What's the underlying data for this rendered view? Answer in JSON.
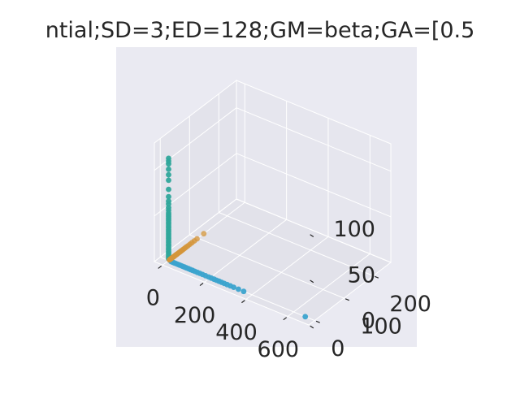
{
  "chart_data": {
    "type": "scatter",
    "projection": "3d",
    "title": "ntial;SD=3;ED=128;GM=beta;GA=[0.5",
    "grid": true,
    "axes": {
      "x": {
        "range": [
          -40,
          700
        ],
        "ticks": [
          "0",
          "200",
          "400",
          "600"
        ],
        "label": ""
      },
      "y": {
        "range": [
          -20,
          260
        ],
        "ticks": [
          "0",
          "100",
          "200"
        ],
        "label": ""
      },
      "z": {
        "range": [
          0,
          130
        ],
        "ticks": [
          "0",
          "50",
          "100"
        ],
        "label": ""
      }
    },
    "colors": {
      "x_arm": "#3ba3cd",
      "y_arm": "#d4953a",
      "z_arm": "#2fa79b",
      "pane": "#eaeaf2",
      "grid": "#ffffff"
    },
    "series": [
      {
        "color_key": "x_arm",
        "points": [
          [
            12,
            0,
            0
          ],
          [
            20,
            0,
            0
          ],
          [
            28,
            0,
            0
          ],
          [
            36,
            0,
            0
          ],
          [
            44,
            0,
            0
          ],
          [
            52,
            0,
            0
          ],
          [
            60,
            0,
            0
          ],
          [
            68,
            0,
            0
          ],
          [
            76,
            0,
            0
          ],
          [
            85,
            0,
            0
          ],
          [
            95,
            0,
            0
          ],
          [
            105,
            0,
            0
          ],
          [
            115,
            0,
            0
          ],
          [
            126,
            0,
            0
          ],
          [
            138,
            0,
            0
          ],
          [
            150,
            0,
            0
          ],
          [
            163,
            0,
            0
          ],
          [
            177,
            0,
            0
          ],
          [
            192,
            0,
            0
          ],
          [
            205,
            0,
            0
          ],
          [
            218,
            0,
            0
          ],
          [
            230,
            0,
            0
          ],
          [
            242,
            0,
            0
          ],
          [
            254,
            0,
            0
          ],
          [
            267,
            0,
            0
          ],
          [
            281,
            0,
            0
          ],
          [
            296,
            0,
            0
          ],
          [
            312,
            0,
            0
          ],
          [
            335,
            0,
            0
          ],
          [
            360,
            0,
            0
          ],
          [
            655,
            0,
            0
          ]
        ]
      },
      {
        "color_key": "y_arm",
        "points": [
          [
            0,
            3,
            0
          ],
          [
            0,
            6,
            0
          ],
          [
            0,
            9,
            0
          ],
          [
            0,
            12,
            0
          ],
          [
            0,
            15,
            0
          ],
          [
            0,
            18,
            0
          ],
          [
            0,
            21,
            0
          ],
          [
            0,
            24,
            0
          ],
          [
            0,
            27,
            0
          ],
          [
            0,
            30,
            0
          ],
          [
            0,
            34,
            0
          ],
          [
            0,
            38,
            0
          ],
          [
            0,
            42,
            0
          ],
          [
            0,
            46,
            0
          ],
          [
            0,
            50,
            0
          ],
          [
            0,
            55,
            0
          ],
          [
            0,
            60,
            0
          ],
          [
            0,
            66,
            0
          ],
          [
            0,
            73,
            0
          ],
          [
            0,
            80,
            0
          ],
          [
            0,
            88,
            0
          ],
          [
            0,
            97,
            0
          ],
          [
            0,
            120,
            0
          ]
        ]
      },
      {
        "color_key": "z_arm",
        "points": [
          [
            0,
            0,
            2
          ],
          [
            0,
            0,
            4
          ],
          [
            0,
            0,
            6
          ],
          [
            0,
            0,
            8
          ],
          [
            0,
            0,
            10
          ],
          [
            0,
            0,
            12
          ],
          [
            0,
            0,
            14
          ],
          [
            0,
            0,
            16
          ],
          [
            0,
            0,
            18
          ],
          [
            0,
            0,
            20
          ],
          [
            0,
            0,
            22
          ],
          [
            0,
            0,
            24
          ],
          [
            0,
            0,
            26
          ],
          [
            0,
            0,
            28
          ],
          [
            0,
            0,
            30
          ],
          [
            0,
            0,
            32
          ],
          [
            0,
            0,
            34
          ],
          [
            0,
            0,
            36
          ],
          [
            0,
            0,
            38
          ],
          [
            0,
            0,
            40
          ],
          [
            0,
            0,
            42
          ],
          [
            0,
            0,
            44
          ],
          [
            0,
            0,
            46
          ],
          [
            0,
            0,
            48
          ],
          [
            0,
            0,
            50
          ],
          [
            0,
            0,
            52
          ],
          [
            0,
            0,
            55
          ],
          [
            0,
            0,
            58
          ],
          [
            0,
            0,
            62
          ],
          [
            0,
            0,
            65
          ],
          [
            0,
            0,
            70
          ],
          [
            0,
            0,
            78
          ],
          [
            0,
            0,
            88
          ],
          [
            0,
            0,
            94
          ],
          [
            0,
            0,
            100
          ],
          [
            0,
            0,
            106
          ],
          [
            0,
            0,
            109
          ],
          [
            0,
            0,
            112
          ]
        ]
      }
    ]
  }
}
